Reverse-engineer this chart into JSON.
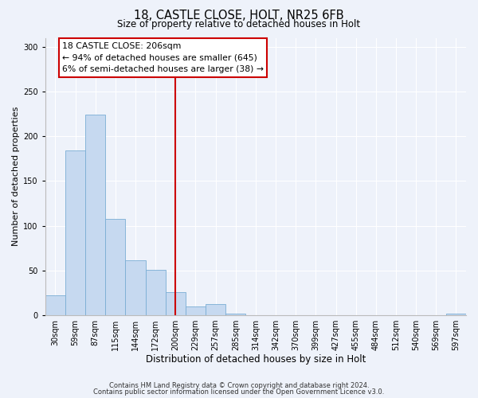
{
  "title1": "18, CASTLE CLOSE, HOLT, NR25 6FB",
  "title2": "Size of property relative to detached houses in Holt",
  "xlabel": "Distribution of detached houses by size in Holt",
  "ylabel": "Number of detached properties",
  "bin_labels": [
    "30sqm",
    "59sqm",
    "87sqm",
    "115sqm",
    "144sqm",
    "172sqm",
    "200sqm",
    "229sqm",
    "257sqm",
    "285sqm",
    "314sqm",
    "342sqm",
    "370sqm",
    "399sqm",
    "427sqm",
    "455sqm",
    "484sqm",
    "512sqm",
    "540sqm",
    "569sqm",
    "597sqm"
  ],
  "bar_values": [
    22,
    184,
    224,
    108,
    61,
    51,
    26,
    10,
    12,
    2,
    0,
    0,
    0,
    0,
    0,
    0,
    0,
    0,
    0,
    0,
    2
  ],
  "bar_color": "#c6d9f0",
  "bar_edge_color": "#7aadd4",
  "vline_x": 6,
  "vline_color": "#cc0000",
  "ylim": [
    0,
    310
  ],
  "yticks": [
    0,
    50,
    100,
    150,
    200,
    250,
    300
  ],
  "annotation_title": "18 CASTLE CLOSE: 206sqm",
  "annotation_line1": "← 94% of detached houses are smaller (645)",
  "annotation_line2": "6% of semi-detached houses are larger (38) →",
  "annotation_box_color": "#ffffff",
  "annotation_box_edge": "#cc0000",
  "footer1": "Contains HM Land Registry data © Crown copyright and database right 2024.",
  "footer2": "Contains public sector information licensed under the Open Government Licence v3.0.",
  "background_color": "#eef2fa",
  "plot_background": "#eef2fa",
  "grid_color": "#ffffff",
  "title1_fontsize": 10.5,
  "title2_fontsize": 8.5,
  "xlabel_fontsize": 8.5,
  "ylabel_fontsize": 8.0,
  "tick_fontsize": 7.0,
  "annotation_fontsize": 7.8,
  "footer_fontsize": 6.0
}
